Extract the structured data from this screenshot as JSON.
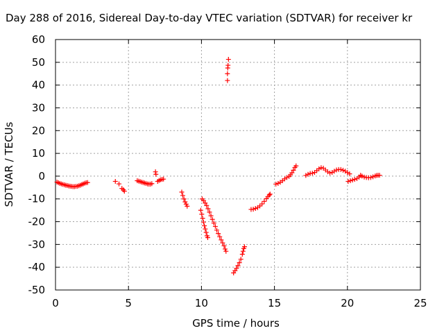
{
  "chart_data": {
    "type": "scatter",
    "title": "Day 288 of 2016, Sidereal Day-to-day VTEC variation (SDTVAR) for receiver kr",
    "xlabel": "GPS time / hours",
    "ylabel": "SDTVAR / TECUs",
    "xlim": [
      0,
      25
    ],
    "ylim": [
      -50,
      60
    ],
    "xticks": [
      0,
      5,
      10,
      15,
      20,
      25
    ],
    "yticks": [
      -50,
      -40,
      -30,
      -20,
      -10,
      0,
      10,
      20,
      30,
      40,
      50,
      60
    ],
    "xtick_labels": [
      "0",
      "5",
      "10",
      "15",
      "20",
      "25"
    ],
    "ytick_labels": [
      "-50",
      "-40",
      "-30",
      "-20",
      "-10",
      "0",
      "10",
      "20",
      "30",
      "40",
      "50",
      "60"
    ],
    "grid": true,
    "marker": "+",
    "color": "#ff0000",
    "points": [
      [
        0.1,
        -2.6
      ],
      [
        0.2,
        -2.9
      ],
      [
        0.3,
        -3.2
      ],
      [
        0.4,
        -3.4
      ],
      [
        0.5,
        -3.6
      ],
      [
        0.6,
        -3.8
      ],
      [
        0.7,
        -4.0
      ],
      [
        0.8,
        -4.1
      ],
      [
        0.9,
        -4.3
      ],
      [
        1.0,
        -4.4
      ],
      [
        1.1,
        -4.5
      ],
      [
        1.2,
        -4.6
      ],
      [
        1.3,
        -4.6
      ],
      [
        1.4,
        -4.5
      ],
      [
        1.5,
        -4.4
      ],
      [
        1.6,
        -4.2
      ],
      [
        1.7,
        -4.0
      ],
      [
        1.8,
        -3.7
      ],
      [
        1.9,
        -3.4
      ],
      [
        2.0,
        -3.1
      ],
      [
        2.1,
        -2.9
      ],
      [
        2.2,
        -2.8
      ],
      [
        4.1,
        -2.3
      ],
      [
        4.35,
        -3.4
      ],
      [
        4.55,
        -5.4
      ],
      [
        4.65,
        -6.0
      ],
      [
        4.72,
        -6.6
      ],
      [
        5.6,
        -2.0
      ],
      [
        5.7,
        -2.2
      ],
      [
        5.8,
        -2.4
      ],
      [
        5.9,
        -2.6
      ],
      [
        6.0,
        -2.8
      ],
      [
        6.1,
        -3.0
      ],
      [
        6.2,
        -3.2
      ],
      [
        6.3,
        -3.4
      ],
      [
        6.4,
        -3.5
      ],
      [
        6.5,
        -3.5
      ],
      [
        6.6,
        -3.3
      ],
      [
        6.85,
        1.9
      ],
      [
        6.88,
        0.8
      ],
      [
        7.0,
        -2.3
      ],
      [
        7.1,
        -1.9
      ],
      [
        7.2,
        -1.6
      ],
      [
        7.3,
        -1.4
      ],
      [
        7.4,
        -1.3
      ],
      [
        8.65,
        -7.0
      ],
      [
        8.72,
        -8.5
      ],
      [
        8.8,
        -10.0
      ],
      [
        8.88,
        -11.3
      ],
      [
        8.95,
        -12.3
      ],
      [
        9.02,
        -13.2
      ],
      [
        9.95,
        -15.0
      ],
      [
        10.02,
        -16.7
      ],
      [
        10.08,
        -18.5
      ],
      [
        10.14,
        -20.2
      ],
      [
        10.2,
        -21.8
      ],
      [
        10.26,
        -23.2
      ],
      [
        10.32,
        -24.7
      ],
      [
        10.38,
        -26.2
      ],
      [
        10.43,
        -27.0
      ],
      [
        10.05,
        -10.0
      ],
      [
        10.15,
        -10.8
      ],
      [
        10.25,
        -11.8
      ],
      [
        10.35,
        -12.9
      ],
      [
        10.45,
        -14.3
      ],
      [
        10.55,
        -15.8
      ],
      [
        10.65,
        -17.4
      ],
      [
        10.75,
        -19.0
      ],
      [
        10.85,
        -20.6
      ],
      [
        10.95,
        -22.1
      ],
      [
        11.05,
        -23.7
      ],
      [
        11.15,
        -25.2
      ],
      [
        11.25,
        -26.6
      ],
      [
        11.35,
        -28.0
      ],
      [
        11.45,
        -29.3
      ],
      [
        11.55,
        -30.6
      ],
      [
        11.62,
        -32.0
      ],
      [
        11.68,
        -33.0
      ],
      [
        11.78,
        42.0
      ],
      [
        11.78,
        45.0
      ],
      [
        11.8,
        47.5
      ],
      [
        11.82,
        48.7
      ],
      [
        11.85,
        51.3
      ],
      [
        12.2,
        -42.5
      ],
      [
        12.3,
        -41.5
      ],
      [
        12.4,
        -40.5
      ],
      [
        12.5,
        -39.3
      ],
      [
        12.6,
        -38.0
      ],
      [
        12.7,
        -36.5
      ],
      [
        12.8,
        -34.3
      ],
      [
        12.85,
        -33.0
      ],
      [
        12.9,
        -31.8
      ],
      [
        12.95,
        -31.0
      ],
      [
        13.4,
        -14.6
      ],
      [
        13.55,
        -14.5
      ],
      [
        13.7,
        -14.2
      ],
      [
        13.85,
        -13.8
      ],
      [
        14.0,
        -13.1
      ],
      [
        14.15,
        -12.2
      ],
      [
        14.3,
        -11.1
      ],
      [
        14.45,
        -9.9
      ],
      [
        14.55,
        -9.0
      ],
      [
        14.65,
        -8.3
      ],
      [
        14.7,
        -7.9
      ],
      [
        15.1,
        -3.5
      ],
      [
        15.25,
        -3.2
      ],
      [
        15.4,
        -2.7
      ],
      [
        15.55,
        -2.0
      ],
      [
        15.7,
        -1.2
      ],
      [
        15.85,
        -0.6
      ],
      [
        16.0,
        -0.1
      ],
      [
        16.1,
        0.6
      ],
      [
        16.2,
        1.5
      ],
      [
        16.3,
        2.6
      ],
      [
        16.4,
        3.8
      ],
      [
        16.48,
        4.5
      ],
      [
        17.15,
        0.3
      ],
      [
        17.3,
        0.8
      ],
      [
        17.45,
        1.2
      ],
      [
        17.6,
        1.3
      ],
      [
        17.75,
        1.6
      ],
      [
        17.9,
        2.4
      ],
      [
        18.05,
        3.2
      ],
      [
        18.2,
        3.7
      ],
      [
        18.35,
        3.5
      ],
      [
        18.5,
        2.7
      ],
      [
        18.65,
        1.9
      ],
      [
        18.8,
        1.4
      ],
      [
        18.95,
        1.6
      ],
      [
        19.1,
        2.2
      ],
      [
        19.25,
        2.7
      ],
      [
        19.4,
        2.9
      ],
      [
        19.55,
        2.9
      ],
      [
        19.7,
        2.6
      ],
      [
        19.85,
        2.2
      ],
      [
        20.0,
        1.6
      ],
      [
        20.15,
        1.0
      ],
      [
        20.05,
        -2.3
      ],
      [
        20.2,
        -2.0
      ],
      [
        20.35,
        -1.7
      ],
      [
        20.5,
        -1.4
      ],
      [
        20.65,
        -1.1
      ],
      [
        20.8,
        -0.4
      ],
      [
        20.9,
        0.4
      ],
      [
        21.0,
        0.0
      ],
      [
        21.15,
        -0.4
      ],
      [
        21.3,
        -0.6
      ],
      [
        21.45,
        -0.7
      ],
      [
        21.6,
        -0.6
      ],
      [
        21.75,
        -0.3
      ],
      [
        21.9,
        0.1
      ],
      [
        22.0,
        0.3
      ],
      [
        22.1,
        0.4
      ],
      [
        22.2,
        0.4
      ]
    ]
  }
}
